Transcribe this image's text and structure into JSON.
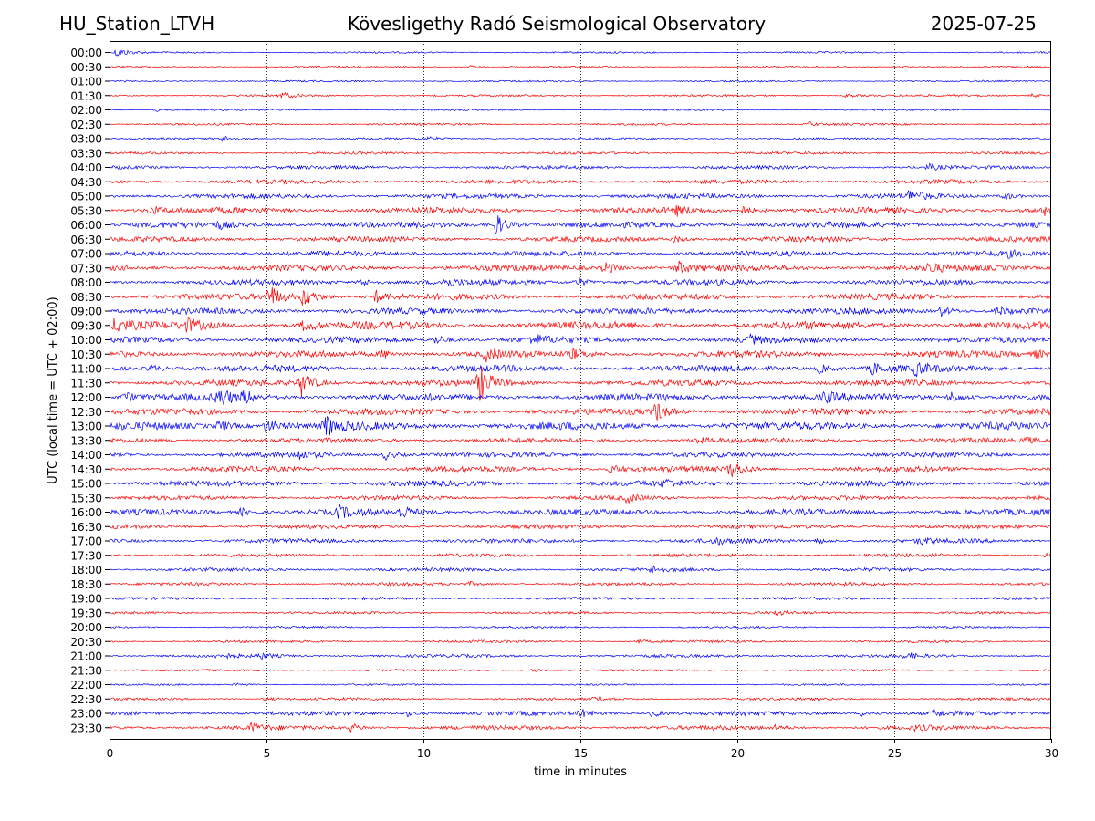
{
  "header": {
    "station": "HU_Station_LTVH",
    "title": "Kövesligethy Radó Seismological Observatory",
    "date": "2025-07-25"
  },
  "chart_data": {
    "type": "line",
    "title": "Kövesligethy Radó Seismological Observatory",
    "xlabel": "time in minutes",
    "ylabel": "UTC (local time = UTC + 02:00)",
    "xlim": [
      0,
      30
    ],
    "xticks": [
      0,
      5,
      10,
      15,
      20,
      25,
      30
    ],
    "vertical_gridlines_at": [
      5,
      10,
      15,
      20,
      25
    ],
    "grid": "vertical dotted",
    "colors": {
      "even_hour": "#0000ff",
      "half_hour": "#ff0000"
    },
    "rows": [
      {
        "label": "00:00",
        "color": "blue",
        "noise": 1,
        "events": [
          [
            0.25,
            5
          ]
        ]
      },
      {
        "label": "00:30",
        "color": "red",
        "noise": 1,
        "events": [
          [
            11.5,
            1.5
          ],
          [
            25.1,
            2
          ]
        ]
      },
      {
        "label": "01:00",
        "color": "blue",
        "noise": 1,
        "events": []
      },
      {
        "label": "01:30",
        "color": "red",
        "noise": 1.2,
        "events": [
          [
            5.5,
            3
          ],
          [
            23.5,
            2
          ],
          [
            29.4,
            2
          ]
        ]
      },
      {
        "label": "02:00",
        "color": "blue",
        "noise": 1,
        "events": [
          [
            1.5,
            1.5
          ]
        ]
      },
      {
        "label": "02:30",
        "color": "red",
        "noise": 1.2,
        "events": [
          [
            22.3,
            2
          ]
        ]
      },
      {
        "label": "03:00",
        "color": "blue",
        "noise": 1.2,
        "events": [
          [
            3.6,
            3
          ],
          [
            10.1,
            2
          ]
        ]
      },
      {
        "label": "03:30",
        "color": "red",
        "noise": 1.5,
        "events": []
      },
      {
        "label": "04:00",
        "color": "blue",
        "noise": 2,
        "events": [
          [
            26.1,
            3
          ]
        ]
      },
      {
        "label": "04:30",
        "color": "red",
        "noise": 2.5,
        "events": []
      },
      {
        "label": "05:00",
        "color": "blue",
        "noise": 2.8,
        "events": [
          [
            25.5,
            6
          ],
          [
            28.5,
            4
          ]
        ]
      },
      {
        "label": "05:30",
        "color": "red",
        "noise": 3.5,
        "events": [
          [
            1.3,
            4
          ],
          [
            18.1,
            4
          ],
          [
            20.2,
            4
          ],
          [
            29.8,
            4
          ]
        ]
      },
      {
        "label": "06:00",
        "color": "blue",
        "noise": 3.5,
        "events": [
          [
            12.3,
            12
          ],
          [
            3.5,
            3
          ]
        ]
      },
      {
        "label": "06:30",
        "color": "red",
        "noise": 3,
        "events": [
          [
            18,
            3
          ]
        ]
      },
      {
        "label": "07:00",
        "color": "blue",
        "noise": 3,
        "events": [
          [
            28.6,
            3
          ]
        ]
      },
      {
        "label": "07:30",
        "color": "red",
        "noise": 3.5,
        "events": [
          [
            15.8,
            7
          ],
          [
            18.1,
            7
          ],
          [
            26.1,
            5
          ]
        ]
      },
      {
        "label": "08:00",
        "color": "blue",
        "noise": 3.2,
        "events": [
          [
            8,
            4
          ],
          [
            10.7,
            4
          ],
          [
            14.9,
            5
          ]
        ]
      },
      {
        "label": "08:30",
        "color": "red",
        "noise": 3.5,
        "events": [
          [
            5.1,
            12
          ],
          [
            6.2,
            12
          ],
          [
            8.5,
            6
          ]
        ]
      },
      {
        "label": "09:00",
        "color": "blue",
        "noise": 3.5,
        "events": [
          [
            26.5,
            5
          ],
          [
            28.3,
            5
          ]
        ]
      },
      {
        "label": "09:30",
        "color": "red",
        "noise": 4.5,
        "events": [
          [
            0.2,
            7
          ],
          [
            2.5,
            6
          ],
          [
            6.2,
            6
          ]
        ]
      },
      {
        "label": "10:00",
        "color": "blue",
        "noise": 3.5,
        "events": [
          [
            10.4,
            5
          ],
          [
            13.5,
            5
          ],
          [
            20.4,
            4
          ]
        ]
      },
      {
        "label": "10:30",
        "color": "red",
        "noise": 3.8,
        "events": [
          [
            8.7,
            4
          ],
          [
            12,
            6
          ],
          [
            14.8,
            5
          ],
          [
            29.5,
            4
          ]
        ]
      },
      {
        "label": "11:00",
        "color": "blue",
        "noise": 3.8,
        "events": [
          [
            1.3,
            4
          ],
          [
            22.6,
            5
          ],
          [
            24.3,
            6
          ],
          [
            25.7,
            6
          ]
        ]
      },
      {
        "label": "11:30",
        "color": "red",
        "noise": 3.5,
        "events": [
          [
            6.1,
            14
          ],
          [
            11.8,
            18
          ]
        ]
      },
      {
        "label": "12:00",
        "color": "blue",
        "noise": 4,
        "events": [
          [
            0.5,
            5
          ],
          [
            3.5,
            10
          ],
          [
            4.3,
            6
          ],
          [
            22.8,
            5
          ],
          [
            26.8,
            6
          ]
        ]
      },
      {
        "label": "12:30",
        "color": "red",
        "noise": 3.8,
        "events": [
          [
            17.4,
            10
          ]
        ]
      },
      {
        "label": "13:00",
        "color": "blue",
        "noise": 4.5,
        "events": [
          [
            3.5,
            6
          ],
          [
            5,
            7
          ],
          [
            6.9,
            10
          ]
        ]
      },
      {
        "label": "13:30",
        "color": "red",
        "noise": 2.8,
        "events": [
          [
            18.7,
            3
          ],
          [
            29.2,
            3
          ]
        ]
      },
      {
        "label": "14:00",
        "color": "blue",
        "noise": 2.8,
        "events": [
          [
            6,
            5
          ],
          [
            8.8,
            5
          ]
        ]
      },
      {
        "label": "14:30",
        "color": "red",
        "noise": 3.2,
        "events": [
          [
            19.8,
            9
          ],
          [
            16,
            4
          ]
        ]
      },
      {
        "label": "15:00",
        "color": "blue",
        "noise": 3.2,
        "events": [
          [
            17.7,
            4
          ]
        ]
      },
      {
        "label": "15:30",
        "color": "red",
        "noise": 2.5,
        "events": [
          [
            16.5,
            4
          ]
        ]
      },
      {
        "label": "16:00",
        "color": "blue",
        "noise": 3.5,
        "events": [
          [
            7.3,
            6
          ],
          [
            9.3,
            6
          ],
          [
            4.2,
            4
          ]
        ]
      },
      {
        "label": "16:30",
        "color": "red",
        "noise": 2.5,
        "events": []
      },
      {
        "label": "17:00",
        "color": "blue",
        "noise": 2.5,
        "events": [
          [
            19.3,
            3
          ],
          [
            22.5,
            3
          ],
          [
            25.8,
            3
          ]
        ]
      },
      {
        "label": "17:30",
        "color": "red",
        "noise": 2,
        "events": [
          [
            29.8,
            2
          ]
        ]
      },
      {
        "label": "18:00",
        "color": "blue",
        "noise": 2,
        "events": [
          [
            17.3,
            3
          ]
        ]
      },
      {
        "label": "18:30",
        "color": "red",
        "noise": 1.8,
        "events": [
          [
            11.5,
            2
          ]
        ]
      },
      {
        "label": "19:00",
        "color": "blue",
        "noise": 1.5,
        "events": []
      },
      {
        "label": "19:30",
        "color": "red",
        "noise": 1.5,
        "events": [
          [
            21.2,
            2
          ]
        ]
      },
      {
        "label": "20:00",
        "color": "blue",
        "noise": 1.2,
        "events": []
      },
      {
        "label": "20:30",
        "color": "red",
        "noise": 1.5,
        "events": [
          [
            16.8,
            2
          ]
        ]
      },
      {
        "label": "21:00",
        "color": "blue",
        "noise": 1.8,
        "events": [
          [
            3.5,
            3
          ],
          [
            4.8,
            3
          ],
          [
            25.4,
            3
          ]
        ]
      },
      {
        "label": "21:30",
        "color": "red",
        "noise": 1.2,
        "events": [
          [
            13.5,
            2
          ]
        ]
      },
      {
        "label": "22:00",
        "color": "blue",
        "noise": 1,
        "events": [
          [
            4,
            2
          ]
        ]
      },
      {
        "label": "22:30",
        "color": "red",
        "noise": 1.5,
        "events": [
          [
            5,
            2
          ],
          [
            15.5,
            2
          ]
        ]
      },
      {
        "label": "23:00",
        "color": "blue",
        "noise": 2.5,
        "events": [
          [
            9.5,
            3
          ],
          [
            15,
            4
          ],
          [
            17.3,
            4
          ],
          [
            24,
            3
          ],
          [
            26.3,
            3
          ]
        ]
      },
      {
        "label": "23:30",
        "color": "red",
        "noise": 2.5,
        "events": [
          [
            4.5,
            4
          ],
          [
            7.7,
            4
          ],
          [
            25.7,
            2
          ],
          [
            21.2,
            2
          ]
        ]
      }
    ]
  }
}
